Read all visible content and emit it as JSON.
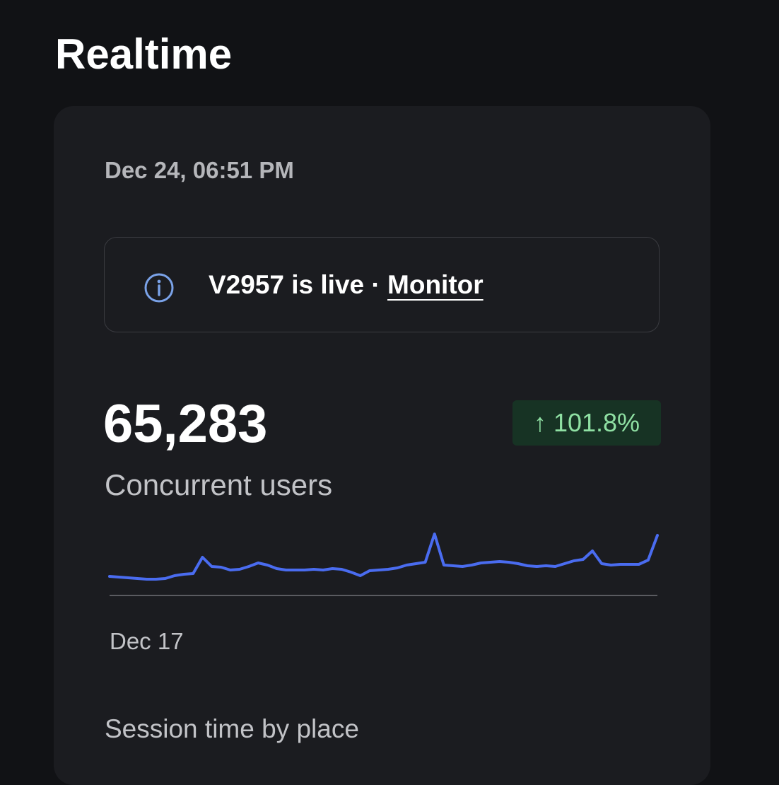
{
  "header": {
    "title": "Realtime"
  },
  "card": {
    "timestamp": "Dec 24, 06:51 PM",
    "notice": {
      "text": "V2957 is live ·",
      "link": "Monitor"
    },
    "metric": {
      "value": "65,283",
      "change": "↑ 101.8%",
      "label": "Concurrent users"
    },
    "next_section": "Session time by place"
  },
  "chart_data": {
    "type": "line",
    "color": "#4a6cf0",
    "ylim": [
      0,
      100
    ],
    "categories": [
      "Dec 17",
      null,
      null,
      null,
      null,
      null,
      null,
      null,
      null,
      null,
      null,
      null,
      null,
      null,
      null,
      null,
      null,
      null,
      null,
      null,
      null,
      null,
      null,
      null,
      null,
      null,
      null,
      null,
      null,
      null,
      null,
      null,
      null,
      null,
      null,
      null,
      null,
      null,
      null,
      null,
      null,
      null,
      null,
      null,
      null,
      null,
      null,
      null,
      null,
      null,
      null,
      null,
      null,
      null,
      null,
      null,
      null,
      null,
      null,
      null
    ],
    "values": [
      27,
      26,
      25,
      24,
      23,
      23,
      24,
      28,
      30,
      31,
      54,
      41,
      40,
      36,
      37,
      41,
      46,
      43,
      38,
      36,
      36,
      36,
      37,
      36,
      38,
      37,
      33,
      28,
      35,
      36,
      37,
      39,
      43,
      45,
      47,
      87,
      43,
      42,
      41,
      43,
      46,
      47,
      48,
      47,
      45,
      42,
      41,
      42,
      41,
      45,
      49,
      51,
      63,
      45,
      43,
      44,
      44,
      44,
      50,
      85
    ]
  }
}
